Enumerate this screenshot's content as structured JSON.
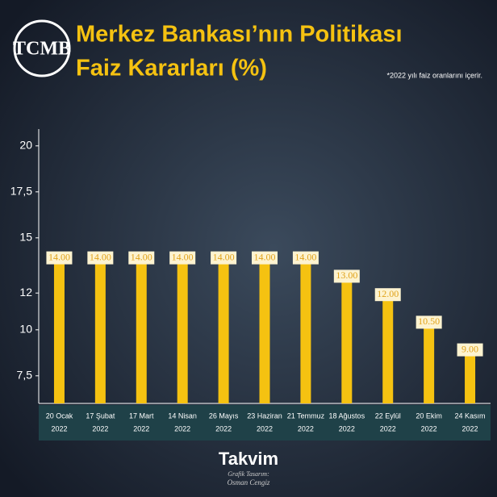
{
  "chart_data": {
    "type": "bar",
    "title_lines": [
      "Merkez Bankası’nın Politikası",
      "Faiz Kararları (%)"
    ],
    "note": "*2022 yılı faiz oranlarını içerir.",
    "logo": "TCMB",
    "brand": "Takvim",
    "credit_lines": [
      "Grafik Tasarım:",
      "Osman Cengiz"
    ],
    "categories": [
      [
        "20 Ocak",
        "2022"
      ],
      [
        "17 Şubat",
        "2022"
      ],
      [
        "17 Mart",
        "2022"
      ],
      [
        "14 Nisan",
        "2022"
      ],
      [
        "26 Mayıs",
        "2022"
      ],
      [
        "23 Haziran",
        "2022"
      ],
      [
        "21 Temmuz",
        "2022"
      ],
      [
        "18 Ağustos",
        "2022"
      ],
      [
        "22 Eylül",
        "2022"
      ],
      [
        "20 Ekim",
        "2022"
      ],
      [
        "24 Kasım",
        "2022"
      ]
    ],
    "values": [
      14,
      14,
      14,
      14,
      14,
      14,
      14,
      13,
      12,
      10.5,
      9
    ],
    "value_labels": [
      "14.00",
      "14.00",
      "14.00",
      "14.00",
      "14.00",
      "14.00",
      "14.00",
      "13.00",
      "12.00",
      "10.50",
      "9.00"
    ],
    "color": "#f5c211",
    "ylim": [
      6,
      21
    ],
    "yticks": [
      20,
      {
        "value": 17.5,
        "label": "17,5"
      },
      15,
      12,
      10,
      {
        "value": 7.5,
        "label": "7,5"
      }
    ],
    "grid": false
  }
}
